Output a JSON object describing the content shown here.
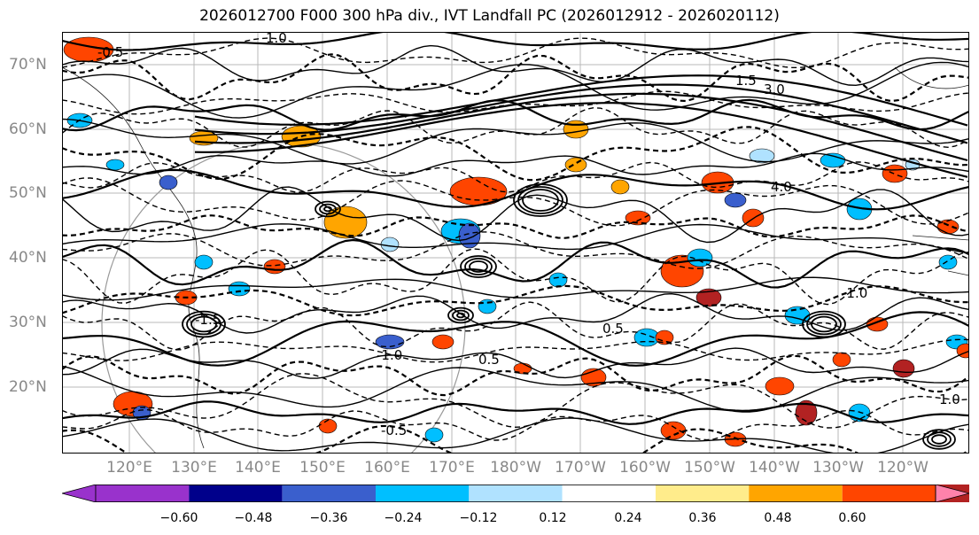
{
  "map": {
    "title": "2026012700 F000 300 hPa div., IVT Landfall PC (2026012912 - 2026020112)",
    "lat_labels": [
      "70°N",
      "60°N",
      "50°N",
      "40°N",
      "30°N",
      "20°N"
    ],
    "lon_labels": [
      "120°E",
      "130°E",
      "140°E",
      "150°E",
      "160°E",
      "170°E",
      "180°W",
      "170°W",
      "160°W",
      "150°W",
      "140°W",
      "130°W",
      "120°W"
    ],
    "contour_labels": [
      "-0.5",
      "1.0",
      "1.5",
      "0.5",
      "-1.0",
      "-1.5",
      "3.0",
      "4.0",
      "-0.5",
      "0.5",
      "1.0",
      "-1.0"
    ]
  },
  "colorbar": {
    "colors": [
      "#9932cc",
      "#00008b",
      "#3a5fcd",
      "#00bfff",
      "#b0e2ff",
      "#ffffff",
      "#ffec8b",
      "#ffa500",
      "#ff4500",
      "#b22222",
      "#ff82ab"
    ],
    "tick_labels": [
      "−0.60",
      "−0.48",
      "−0.36",
      "−0.24",
      "−0.12",
      "0.12",
      "0.24",
      "0.36",
      "0.48",
      "0.60"
    ]
  }
}
